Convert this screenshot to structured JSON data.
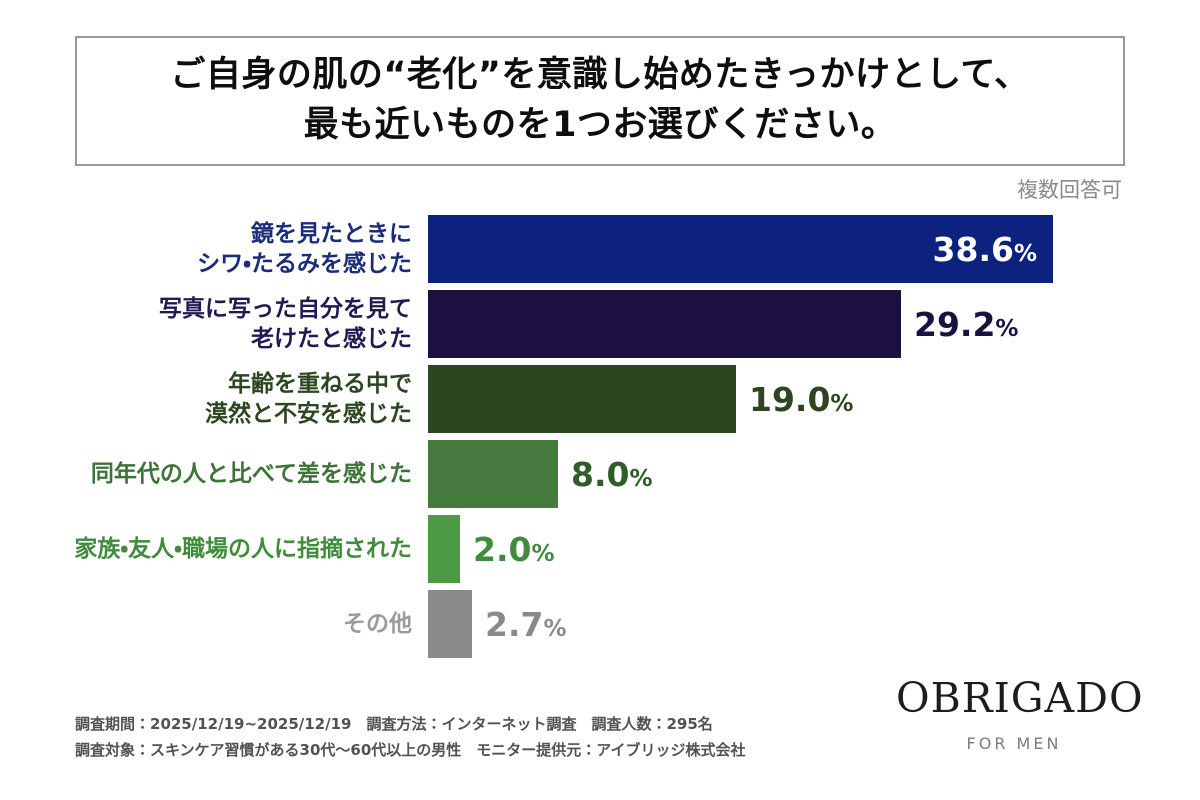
{
  "chart_data": {
    "type": "bar",
    "orientation": "horizontal",
    "title": "ご自身の肌の“老化”を意識し始めたきっかけとして、最も近いものを1つお選びください。",
    "title_lines": [
      "ご自身の肌の“老化”を意識し始めたきっかけとして、",
      "最も近いものを1つお選びください。"
    ],
    "note": "複数回答可",
    "unit": "%",
    "xlim": [
      0,
      40
    ],
    "legend": null,
    "grid": false,
    "categories": [
      "鏡を見たときにシワ・たるみを感じた",
      "写真に写った自分を見て老けたと感じた",
      "年齢を重ねる中で漠然と不安を感じた",
      "同年代の人と比べて差を感じた",
      "家族・友人・職場の人に指摘された",
      "その他"
    ],
    "values": [
      38.6,
      29.2,
      19.0,
      8.0,
      2.0,
      2.7
    ],
    "rows": [
      {
        "label_lines": [
          "鏡を見たときに",
          "シワ・たるみを感じた"
        ],
        "value": 38.6,
        "value_label": "38.6",
        "bar_color": "#0d217f",
        "label_color": "#1b2d79",
        "value_color": "#ffffff",
        "value_inside": true
      },
      {
        "label_lines": [
          "写真に写った自分を見て",
          "老けたと感じた"
        ],
        "value": 29.2,
        "value_label": "29.2",
        "bar_color": "#1b1040",
        "label_color": "#201a52",
        "value_color": "#1b1040",
        "value_inside": false
      },
      {
        "label_lines": [
          "年齢を重ねる中で",
          "漠然と不安を感じた"
        ],
        "value": 19.0,
        "value_label": "19.0",
        "bar_color": "#2d4621",
        "label_color": "#2d4621",
        "value_color": "#2d4621",
        "value_inside": false
      },
      {
        "label_lines": [
          "同年代の人と比べて差を感じた"
        ],
        "value": 8.0,
        "value_label": "8.0",
        "bar_color": "#477a3e",
        "label_color": "#3c7336",
        "value_color": "#2f5c28",
        "value_inside": false
      },
      {
        "label_lines": [
          "家族・友人・職場の人に指摘された"
        ],
        "value": 2.0,
        "value_label": "2.0",
        "bar_color": "#4d9a44",
        "label_color": "#418c3c",
        "value_color": "#418c3c",
        "value_inside": false
      },
      {
        "label_lines": [
          "その他"
        ],
        "value": 2.7,
        "value_label": "2.7",
        "bar_color": "#8a8a8a",
        "label_color": "#9b9b9b",
        "value_color": "#8a8a8a",
        "value_inside": false
      }
    ]
  },
  "footer": {
    "line1": "調査期間：2025/12/19~2025/12/19　調査方法：インターネット調査　調査人数：295名",
    "line2": "調査対象：スキンケア習慣がある30代～60代以上の男性　モニター提供元：アイブリッジ株式会社"
  },
  "brand": {
    "name": "OBRIGADO",
    "tagline": "FOR MEN"
  }
}
